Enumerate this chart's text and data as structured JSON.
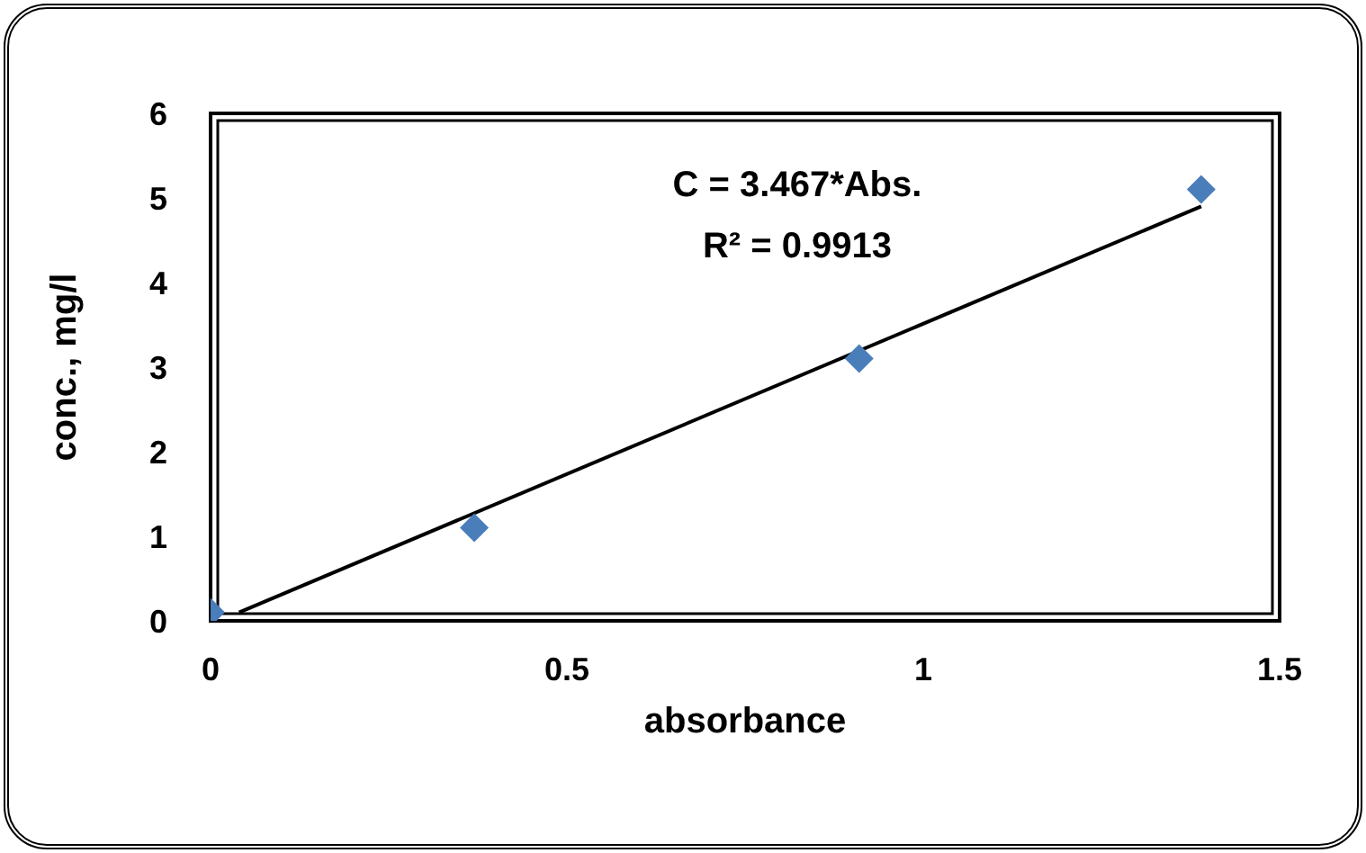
{
  "chart_data": {
    "type": "scatter",
    "xlabel": "absorbance",
    "ylabel": "conc., mg/l",
    "xlim": [
      0,
      1.5
    ],
    "xticks": [
      0,
      0.5,
      1,
      1.5
    ],
    "ylim": [
      0,
      6
    ],
    "yticks": [
      0,
      1,
      2,
      3,
      4,
      5,
      6
    ],
    "grid": false,
    "legend": false,
    "marker": "diamond",
    "annotations": [
      "C = 3.467*Abs.",
      "R² = 0.9913"
    ],
    "series": [
      {
        "type": "scatter",
        "color": "#4a7ebb",
        "x": [
          0,
          0.37,
          0.91,
          1.39
        ],
        "values": [
          0.1,
          1.1,
          3.1,
          5.1
        ]
      },
      {
        "type": "line",
        "color": "#000000",
        "marker": "none",
        "x": [
          0.04,
          1.39
        ],
        "values": [
          0.1,
          4.9
        ]
      }
    ]
  }
}
